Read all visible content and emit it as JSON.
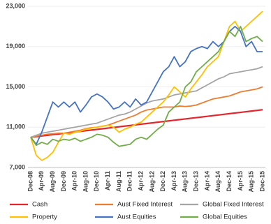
{
  "chart_data": {
    "type": "line",
    "categories": [
      "Dec-08",
      null,
      "Apr-09",
      null,
      "Aug-09",
      null,
      "Dec-09",
      null,
      "Apr-10",
      null,
      "Aug-10",
      null,
      "Dec-10",
      null,
      "Apr-11",
      null,
      "Aug-11",
      null,
      "Dec-11",
      null,
      "Apr-12",
      null,
      "Aug-12",
      null,
      "Dec-12",
      null,
      "Apr-13",
      null,
      "Aug-13",
      null,
      "Dec-13",
      null,
      "Apr-14",
      null,
      "Aug-14",
      null,
      "Dec-14",
      null,
      "Apr-15",
      null,
      "Aug-15",
      null,
      "Dec-15"
    ],
    "series": [
      {
        "name": "Cash",
        "color": "#e3262b",
        "values": [
          10000,
          10065,
          10130,
          10195,
          10260,
          10325,
          10390,
          10455,
          10520,
          10585,
          10650,
          10715,
          10780,
          10845,
          10910,
          10975,
          11040,
          11105,
          11170,
          11235,
          11300,
          11365,
          11430,
          11495,
          11560,
          11625,
          11690,
          11755,
          11820,
          11885,
          11950,
          12015,
          12080,
          12145,
          12210,
          12275,
          12340,
          12405,
          12470,
          12535,
          12600,
          12665,
          12730
        ]
      },
      {
        "name": "Aust Fixed Interest",
        "color": "#ed7d31",
        "values": [
          10000,
          10100,
          10200,
          10300,
          10350,
          10400,
          10400,
          10500,
          10600,
          10700,
          10850,
          10950,
          11000,
          11100,
          11200,
          11400,
          11600,
          11800,
          12000,
          12200,
          12500,
          12700,
          12800,
          12900,
          13000,
          13000,
          13000,
          13100,
          13050,
          13100,
          13200,
          13400,
          13600,
          13800,
          13900,
          14000,
          14100,
          14300,
          14500,
          14600,
          14700,
          14800,
          15000
        ]
      },
      {
        "name": "Global Fixed Interest",
        "color": "#a5a5a5",
        "values": [
          10000,
          10200,
          10400,
          10500,
          10600,
          10700,
          10800,
          10900,
          11000,
          11100,
          11200,
          11300,
          11400,
          11600,
          11800,
          12000,
          12200,
          12300,
          12500,
          12800,
          13100,
          13400,
          13600,
          13700,
          13800,
          14000,
          14200,
          14300,
          14400,
          14500,
          14600,
          14900,
          15200,
          15500,
          15800,
          16000,
          16300,
          16400,
          16500,
          16600,
          16700,
          16800,
          17000
        ]
      },
      {
        "name": "Property",
        "color": "#ffc000",
        "values": [
          10000,
          8200,
          7700,
          8000,
          8500,
          9500,
          10400,
          10300,
          10500,
          10600,
          10800,
          10900,
          11000,
          11100,
          11200,
          11000,
          10500,
          10800,
          11000,
          11300,
          11500,
          12000,
          12500,
          13000,
          13500,
          14200,
          15000,
          14500,
          14000,
          14800,
          15500,
          16200,
          17000,
          17500,
          18000,
          19500,
          21000,
          21500,
          20500,
          21000,
          21500,
          22000,
          22500
        ]
      },
      {
        "name": "Aust Equities",
        "color": "#4472c4",
        "values": [
          10000,
          9300,
          10500,
          12000,
          13500,
          13000,
          13500,
          13000,
          13500,
          12500,
          13200,
          14000,
          14300,
          14000,
          13500,
          12800,
          13000,
          13500,
          13000,
          13800,
          13200,
          13500,
          14500,
          15500,
          16500,
          17000,
          18000,
          17000,
          17500,
          18500,
          18800,
          19000,
          18800,
          19500,
          19000,
          19500,
          20500,
          21000,
          20500,
          19000,
          19500,
          18500,
          18500
        ]
      },
      {
        "name": "Global Equities",
        "color": "#70ad47",
        "values": [
          10000,
          9200,
          9500,
          9300,
          9800,
          9600,
          9800,
          9700,
          9900,
          9600,
          9800,
          10000,
          10300,
          10200,
          10000,
          9500,
          9100,
          9200,
          9300,
          9800,
          10000,
          9800,
          10300,
          10800,
          11200,
          12500,
          13000,
          13500,
          15000,
          15500,
          16500,
          17000,
          17500,
          18000,
          18500,
          19500,
          20500,
          20000,
          21000,
          19500,
          19800,
          20000,
          19500
        ]
      }
    ],
    "ylim": [
      7000,
      23000
    ],
    "yticks": [
      {
        "value": 7000,
        "label": "7,000"
      },
      {
        "value": 11000,
        "label": "11,000"
      },
      {
        "value": 15000,
        "label": "15,000"
      },
      {
        "value": 19000,
        "label": "19,000"
      },
      {
        "value": 23000,
        "label": "23,000"
      }
    ],
    "grid": true,
    "legend": "bottom"
  }
}
